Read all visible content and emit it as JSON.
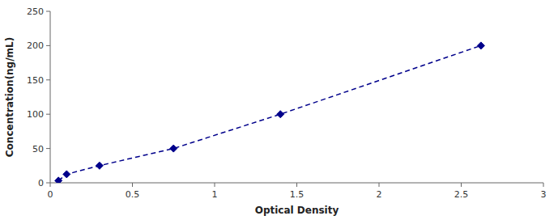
{
  "chart_data": {
    "type": "line",
    "x": [
      0.05,
      0.1,
      0.3,
      0.75,
      1.4,
      2.62
    ],
    "values": [
      3.12,
      12.5,
      25,
      50,
      100,
      200
    ],
    "color": "#00008B",
    "marker": "diamond",
    "line_style": "dashed",
    "xlabel": "Optical Density",
    "ylabel": "Concentration(ng/mL)",
    "xlim": [
      0,
      3
    ],
    "ylim": [
      0,
      250
    ],
    "xticks": [
      0,
      0.5,
      1,
      1.5,
      2,
      2.5,
      3
    ],
    "yticks": [
      0,
      50,
      100,
      150,
      200,
      250
    ],
    "grid": false
  }
}
